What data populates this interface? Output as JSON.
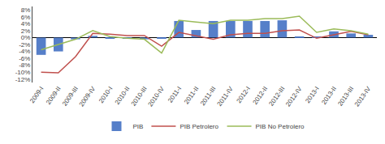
{
  "chart_data": {
    "type": "bar",
    "categories": [
      "2009-I",
      "2009-II",
      "2009-III",
      "2009-IV",
      "2010-I",
      "2010-II",
      "2010-III",
      "2010-IV",
      "2011-I",
      "2011-II",
      "2011-III",
      "2011-IV",
      "2012-I",
      "2012-II",
      "2012-III",
      "2012-IV",
      "2013-I",
      "2013-II",
      "2013-III",
      "2013-IV"
    ],
    "series": [
      {
        "name": "PIB",
        "type": "bar",
        "color": "#4472C4",
        "values": [
          -5.0,
          -4.0,
          -0.5,
          0.5,
          -0.3,
          -0.3,
          -0.5,
          -0.3,
          4.8,
          2.2,
          4.8,
          4.8,
          4.8,
          4.8,
          5.0,
          0.3,
          0.3,
          1.8,
          1.2,
          0.8
        ]
      },
      {
        "name": "PIB Petrolero",
        "type": "line",
        "color": "#C0504D",
        "values": [
          -10.0,
          -10.2,
          -5.5,
          1.2,
          1.0,
          0.6,
          0.6,
          -2.5,
          1.5,
          0.5,
          -0.5,
          0.8,
          1.2,
          1.2,
          2.0,
          2.2,
          -0.2,
          0.8,
          1.8,
          0.8
        ]
      },
      {
        "name": "PIB No Petrolero",
        "type": "line",
        "color": "#9BBB59",
        "values": [
          -3.5,
          -2.0,
          -0.5,
          2.0,
          0.3,
          -0.2,
          -0.5,
          -4.5,
          5.0,
          4.5,
          4.0,
          5.0,
          5.0,
          5.5,
          5.5,
          6.2,
          1.5,
          2.5,
          2.0,
          1.0
        ]
      }
    ],
    "ylim": [
      -13,
      9
    ],
    "yticks": [
      {
        "value": -12,
        "label": "-12%"
      },
      {
        "value": -10,
        "label": "-10%"
      },
      {
        "value": -8,
        "label": "-8%"
      },
      {
        "value": -6,
        "label": "-6%"
      },
      {
        "value": -4,
        "label": "-4%"
      },
      {
        "value": -2,
        "label": "-2%"
      },
      {
        "value": 0,
        "label": "0%"
      },
      {
        "value": 2,
        "label": "2%"
      },
      {
        "value": 4,
        "label": "4%"
      },
      {
        "value": 6,
        "label": "6%"
      },
      {
        "value": 8,
        "label": "8%"
      }
    ],
    "grid": false,
    "legend": "bottom"
  }
}
